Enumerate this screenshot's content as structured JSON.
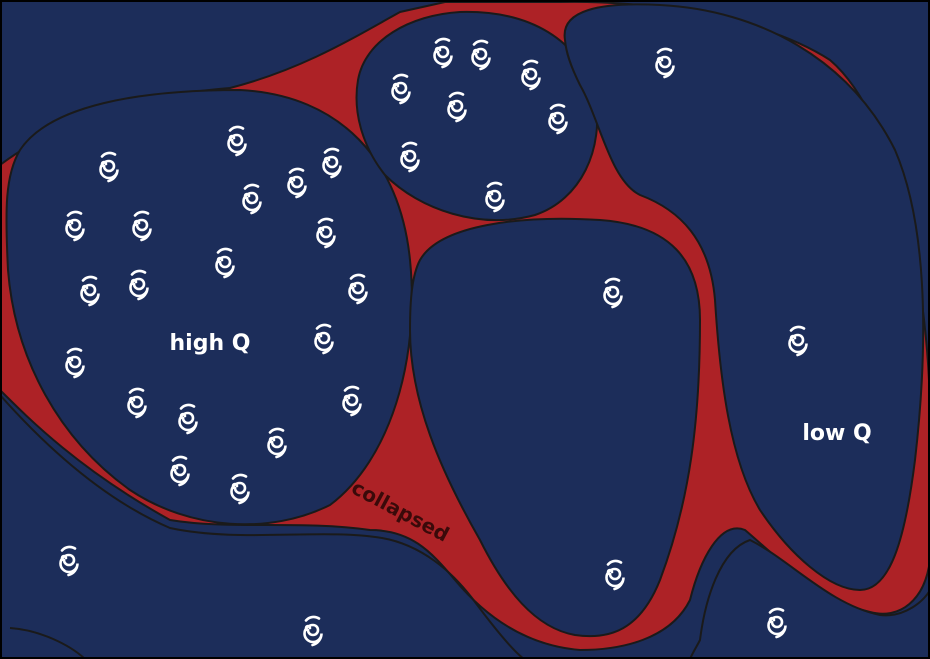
{
  "diagram": {
    "labels": {
      "high_q": "high Q",
      "low_q": "low Q",
      "collapsed": "collapsed"
    },
    "icons": {
      "galaxy": "spiral-galaxy-icon"
    },
    "colors": {
      "background": "#1c2d5a",
      "void": "#1c2d5a",
      "collapsed_region": "#ad2226",
      "outline": "#1a1a1a",
      "galaxy": "#ffffff",
      "label": "#ffffff",
      "collapsed_label": "#3a0a0a"
    }
  }
}
